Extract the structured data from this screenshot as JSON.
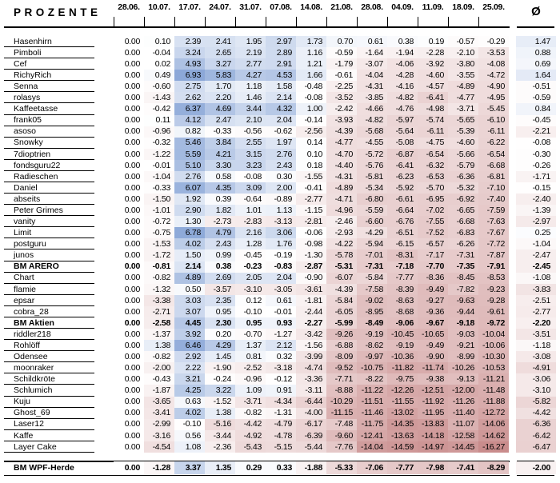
{
  "title": "PROZENTE",
  "header": {
    "avg_symbol": "Ø"
  },
  "chart_data": {
    "type": "heatmap",
    "title": "PROZENTE",
    "unit": "percent",
    "legend_position": "none",
    "columns": [
      "28.06.",
      "10.07.",
      "17.07.",
      "24.07.",
      "31.07.",
      "07.08.",
      "14.08.",
      "21.08.",
      "28.08.",
      "04.09.",
      "11.09.",
      "18.09.",
      "25.09."
    ],
    "avg_column_label": "Ø",
    "color_scale": {
      "zero_color": "#FFFFFF",
      "positive_color": "#8CA8D8",
      "negative_color": "#C98C8C",
      "max_value": 6.93,
      "min_value": -16.27
    },
    "rows": [
      {
        "name": "Hasenhirn",
        "bold": false,
        "values": [
          0.0,
          0.1,
          2.39,
          2.41,
          1.95,
          2.97,
          1.73,
          0.7,
          0.61,
          0.38,
          0.19,
          -0.57,
          -0.29
        ],
        "avg": 1.47
      },
      {
        "name": "Pimboli",
        "bold": false,
        "values": [
          0.0,
          -0.04,
          3.24,
          2.65,
          2.19,
          2.89,
          1.16,
          -0.59,
          -1.64,
          -1.94,
          -2.28,
          -2.1,
          -3.53
        ],
        "avg": 0.88
      },
      {
        "name": "Cef",
        "bold": false,
        "values": [
          0.0,
          0.02,
          4.93,
          3.27,
          2.77,
          2.91,
          1.21,
          -1.79,
          -3.07,
          -4.06,
          -3.92,
          -3.8,
          -4.08
        ],
        "avg": 0.69
      },
      {
        "name": "RichyRich",
        "bold": false,
        "values": [
          0.0,
          0.49,
          6.93,
          5.83,
          4.27,
          4.53,
          1.66,
          -0.61,
          -4.04,
          -4.28,
          -4.6,
          -3.55,
          -4.72
        ],
        "avg": 1.64
      },
      {
        "name": "Senna",
        "bold": false,
        "values": [
          0.0,
          -0.6,
          2.75,
          1.7,
          1.18,
          1.58,
          -0.48,
          -2.25,
          -4.31,
          -4.16,
          -4.57,
          -4.89,
          -4.9
        ],
        "avg": -0.51
      },
      {
        "name": "rolasys",
        "bold": false,
        "values": [
          0.0,
          -1.43,
          2.62,
          2.2,
          1.46,
          2.14,
          -0.08,
          -3.52,
          -3.85,
          -4.82,
          -6.41,
          -4.77,
          -4.95
        ],
        "avg": -0.59
      },
      {
        "name": "Kaffeetasse",
        "bold": false,
        "values": [
          0.0,
          -0.42,
          6.37,
          4.69,
          3.44,
          4.32,
          1.0,
          -2.42,
          -4.66,
          -4.76,
          -4.98,
          -3.71,
          -5.45
        ],
        "avg": 0.84
      },
      {
        "name": "frank05",
        "bold": false,
        "values": [
          0.0,
          0.11,
          4.12,
          2.47,
          2.1,
          2.04,
          -0.14,
          -3.93,
          -4.82,
          -5.97,
          -5.74,
          -5.65,
          -6.1
        ],
        "avg": -0.45
      },
      {
        "name": "asoso",
        "bold": false,
        "values": [
          0.0,
          -0.96,
          0.82,
          -0.33,
          -0.56,
          -0.62,
          -2.56,
          -4.39,
          -5.68,
          -5.64,
          -6.11,
          -5.39,
          -6.11
        ],
        "avg": -2.21
      },
      {
        "name": "Snowky",
        "bold": false,
        "values": [
          0.0,
          -0.32,
          5.46,
          3.84,
          2.55,
          1.97,
          0.14,
          -4.77,
          -4.55,
          -5.08,
          -4.75,
          -4.6,
          -6.22
        ],
        "avg": -0.08
      },
      {
        "name": "7dioptrien",
        "bold": false,
        "values": [
          0.0,
          -1.22,
          5.59,
          4.21,
          3.15,
          2.76,
          0.1,
          -4.7,
          -5.72,
          -6.87,
          -6.54,
          -5.66,
          -6.54
        ],
        "avg": -0.3
      },
      {
        "name": "fondsguru22",
        "bold": false,
        "values": [
          0.0,
          -0.01,
          5.1,
          3.3,
          3.23,
          2.43,
          0.18,
          -4.4,
          -5.76,
          -6.41,
          -6.32,
          -5.79,
          -6.68
        ],
        "avg": -0.26
      },
      {
        "name": "Radieschen",
        "bold": false,
        "values": [
          0.0,
          -1.04,
          2.76,
          0.58,
          -0.08,
          0.3,
          -1.55,
          -4.31,
          -5.81,
          -6.23,
          -6.53,
          -6.36,
          -6.81
        ],
        "avg": -1.71
      },
      {
        "name": "Daniel",
        "bold": false,
        "values": [
          0.0,
          -0.33,
          6.07,
          4.35,
          3.09,
          2.0,
          -0.41,
          -4.89,
          -5.34,
          -5.92,
          -5.7,
          -5.32,
          -7.1
        ],
        "avg": -0.15
      },
      {
        "name": "abseits",
        "bold": false,
        "values": [
          0.0,
          -1.5,
          1.92,
          0.39,
          -0.64,
          -0.89,
          -2.77,
          -4.71,
          -6.8,
          -6.61,
          -6.95,
          -6.92,
          -7.4
        ],
        "avg": -2.4
      },
      {
        "name": "Peter Grimes",
        "bold": false,
        "values": [
          0.0,
          -1.01,
          2.9,
          1.82,
          1.01,
          1.13,
          -1.15,
          -4.96,
          -5.59,
          -6.64,
          -7.02,
          -6.65,
          -7.59
        ],
        "avg": -1.39
      },
      {
        "name": "vanity",
        "bold": false,
        "values": [
          0.0,
          -0.72,
          1.3,
          -2.73,
          -2.83,
          -3.13,
          -2.81,
          -2.46,
          -6.6,
          -6.76,
          -7.55,
          -6.68,
          -7.63
        ],
        "avg": -2.97
      },
      {
        "name": "Limit",
        "bold": false,
        "values": [
          0.0,
          -0.75,
          6.78,
          4.79,
          2.16,
          3.06,
          -0.06,
          -2.93,
          -4.29,
          -6.51,
          -7.52,
          -6.83,
          -7.67
        ],
        "avg": 0.25
      },
      {
        "name": "postguru",
        "bold": false,
        "values": [
          0.0,
          -1.53,
          4.02,
          2.43,
          1.28,
          1.76,
          -0.98,
          -4.22,
          -5.94,
          -6.15,
          -6.57,
          -6.26,
          -7.72
        ],
        "avg": -1.04
      },
      {
        "name": "junos",
        "bold": false,
        "values": [
          0.0,
          -1.72,
          1.5,
          0.99,
          -0.45,
          -0.19,
          -1.3,
          -5.78,
          -7.01,
          -8.31,
          -7.17,
          -7.31,
          -7.87
        ],
        "avg": -2.47
      },
      {
        "name": "BM ARERO",
        "bold": true,
        "values": [
          0.0,
          -0.81,
          2.14,
          0.38,
          -0.23,
          -0.83,
          -2.87,
          -5.31,
          -7.31,
          -7.18,
          -7.7,
          -7.35,
          -7.91
        ],
        "avg": -2.45
      },
      {
        "name": "Chart",
        "bold": false,
        "values": [
          0.0,
          -0.82,
          4.89,
          2.69,
          2.05,
          2.04,
          -0.9,
          -6.07,
          -5.84,
          -7.77,
          -8.36,
          -8.45,
          -8.53
        ],
        "avg": -1.08
      },
      {
        "name": "flamie",
        "bold": false,
        "values": [
          0.0,
          -1.32,
          0.5,
          -3.57,
          -3.1,
          -3.05,
          -3.61,
          -4.39,
          -7.58,
          -8.39,
          -9.49,
          -7.82,
          -9.23
        ],
        "avg": -3.83
      },
      {
        "name": "epsar",
        "bold": false,
        "values": [
          0.0,
          -3.38,
          3.03,
          2.35,
          0.12,
          0.61,
          -1.81,
          -5.84,
          -9.02,
          -8.63,
          -9.27,
          -9.63,
          -9.28
        ],
        "avg": -2.51
      },
      {
        "name": "cobra_28",
        "bold": false,
        "values": [
          0.0,
          -2.71,
          3.07,
          0.95,
          -0.1,
          -0.01,
          -2.44,
          -6.05,
          -8.95,
          -8.68,
          -9.36,
          -9.44,
          -9.61
        ],
        "avg": -2.77
      },
      {
        "name": "BM Aktien",
        "bold": true,
        "values": [
          0.0,
          -2.58,
          4.45,
          2.3,
          0.95,
          0.93,
          -2.27,
          -5.99,
          -8.49,
          -9.06,
          -9.67,
          -9.18,
          -9.72
        ],
        "avg": -2.2
      },
      {
        "name": "riddler218",
        "bold": false,
        "values": [
          0.0,
          -1.37,
          3.92,
          0.2,
          -0.7,
          -1.27,
          -3.42,
          -9.26,
          -9.19,
          -10.45,
          -10.65,
          -9.03,
          -10.04
        ],
        "avg": -3.51
      },
      {
        "name": "Rohlöff",
        "bold": false,
        "values": [
          0.0,
          1.38,
          6.46,
          4.29,
          1.37,
          2.12,
          -1.56,
          -6.88,
          -8.62,
          -9.19,
          -9.49,
          -9.21,
          -10.06
        ],
        "avg": -1.18
      },
      {
        "name": "Odensee",
        "bold": false,
        "values": [
          0.0,
          -0.82,
          2.92,
          1.45,
          0.81,
          0.32,
          -3.99,
          -8.09,
          -9.97,
          -10.36,
          -9.9,
          -8.99,
          -10.3
        ],
        "avg": -3.08
      },
      {
        "name": "moonraker",
        "bold": false,
        "values": [
          0.0,
          -2.0,
          2.22,
          -1.9,
          -2.52,
          -3.18,
          -4.74,
          -9.52,
          -10.75,
          -11.82,
          -11.74,
          -10.26,
          -10.53
        ],
        "avg": -4.91
      },
      {
        "name": "Schildkröte",
        "bold": false,
        "values": [
          0.0,
          -0.43,
          3.21,
          -0.24,
          -0.96,
          -0.12,
          -3.36,
          -7.71,
          -8.22,
          -9.75,
          -9.38,
          -9.13,
          -11.21
        ],
        "avg": -3.06
      },
      {
        "name": "Schlumich",
        "bold": false,
        "values": [
          0.0,
          -1.87,
          4.25,
          3.22,
          1.09,
          0.91,
          -3.11,
          -8.88,
          -11.22,
          -12.26,
          -12.51,
          -12.0,
          -11.48
        ],
        "avg": -3.1
      },
      {
        "name": "Kuju",
        "bold": false,
        "values": [
          0.0,
          -3.65,
          0.63,
          -1.52,
          -3.71,
          -4.34,
          -6.44,
          -10.29,
          -11.51,
          -11.55,
          -11.92,
          -11.26,
          -11.88
        ],
        "avg": -5.82
      },
      {
        "name": "Ghost_69",
        "bold": false,
        "values": [
          0.0,
          -3.41,
          4.02,
          1.38,
          -0.82,
          -1.31,
          -4.0,
          -11.15,
          -11.46,
          -13.02,
          -11.95,
          -11.4,
          -12.72
        ],
        "avg": -4.42
      },
      {
        "name": "Laser12",
        "bold": false,
        "values": [
          0.0,
          -2.99,
          -0.1,
          -5.16,
          -4.42,
          -4.79,
          -6.17,
          -7.48,
          -11.75,
          -14.35,
          -13.83,
          -11.07,
          -14.06
        ],
        "avg": -6.36
      },
      {
        "name": "Kaffe",
        "bold": false,
        "values": [
          0.0,
          -3.16,
          0.56,
          -3.44,
          -4.92,
          -4.78,
          -6.39,
          -9.6,
          -12.41,
          -13.63,
          -14.18,
          -12.58,
          -14.62
        ],
        "avg": -6.42
      },
      {
        "name": "Layer Cake",
        "bold": false,
        "values": [
          0.0,
          -4.54,
          1.08,
          -2.36,
          -5.43,
          -5.15,
          -5.44,
          -7.76,
          -14.04,
          -14.59,
          -14.97,
          -14.45,
          -16.27
        ],
        "avg": -6.47
      }
    ],
    "summary_row": {
      "name": "BM WPF-Herde",
      "bold": true,
      "values": [
        0.0,
        -1.28,
        3.37,
        1.35,
        0.29,
        0.33,
        -1.88,
        -5.33,
        -7.06,
        -7.77,
        -7.98,
        -7.41,
        -8.29
      ],
      "avg": -2.0
    }
  }
}
